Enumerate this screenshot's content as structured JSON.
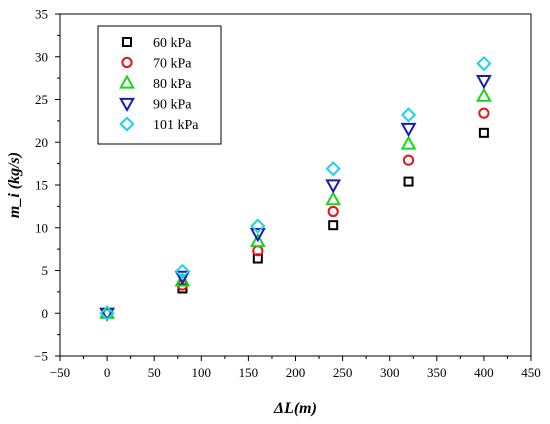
{
  "chart_data": {
    "type": "scatter",
    "title": "",
    "xlabel": "ΔL(m)",
    "ylabel": "m_i (kg/s)",
    "xlim": [
      -50,
      450
    ],
    "ylim": [
      -5,
      35
    ],
    "xticks": [
      -50,
      0,
      50,
      100,
      150,
      200,
      250,
      300,
      350,
      400,
      450
    ],
    "yticks": [
      -5,
      0,
      5,
      10,
      15,
      20,
      25,
      30,
      35
    ],
    "legend_position": "top-left",
    "grid": false,
    "x": [
      0,
      80,
      160,
      240,
      320,
      400
    ],
    "series": [
      {
        "name": "60 kPa",
        "marker": "square",
        "color": "#000000",
        "values": [
          0,
          2.9,
          6.4,
          10.3,
          15.4,
          21.1
        ]
      },
      {
        "name": "70 kPa",
        "marker": "circle",
        "color": "#e8141c",
        "values": [
          0,
          3.3,
          7.3,
          11.9,
          17.9,
          23.4
        ]
      },
      {
        "name": "80 kPa",
        "marker": "triangle-up",
        "color": "#19d619",
        "values": [
          0,
          3.8,
          8.4,
          13.3,
          19.8,
          25.4
        ]
      },
      {
        "name": "90 kPa",
        "marker": "triangle-down",
        "color": "#1b1bb8",
        "values": [
          0,
          4.3,
          9.3,
          15.0,
          21.6,
          27.2
        ]
      },
      {
        "name": "101 kPa",
        "marker": "diamond",
        "color": "#1fd0e8",
        "values": [
          0,
          4.9,
          10.2,
          16.9,
          23.2,
          29.2
        ]
      }
    ]
  }
}
